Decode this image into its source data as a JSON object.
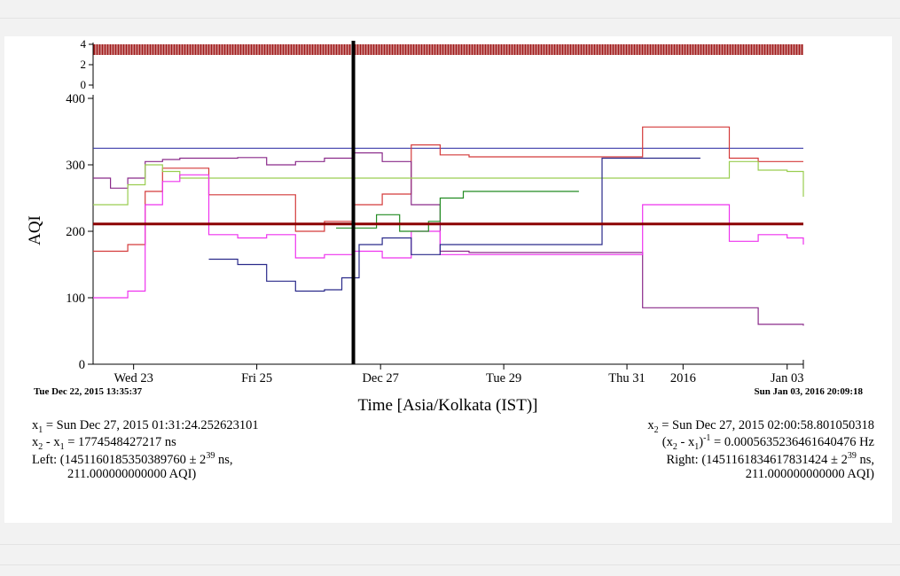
{
  "chart_data": {
    "type": "line",
    "title": "",
    "xlabel": "Time [Asia/Kolkata (IST)]",
    "ylabel": "AQI",
    "ylim": [
      0,
      400
    ],
    "y_ticks": [
      0,
      100,
      200,
      300,
      400
    ],
    "upper_axis_ticks": [
      0,
      2,
      4
    ],
    "x_tick_labels": [
      "Wed 23",
      "Fri 25",
      "Dec 27",
      "Tue 29",
      "Thu 31",
      "2016",
      "Jan 03"
    ],
    "x_range": [
      "2015-12-22 13:35:37",
      "2016-01-03 20:09:18"
    ],
    "start_label": "Tue Dec 22, 2015 13:35:37",
    "end_label": "Sun Jan 03, 2016 20:09:18",
    "grid": false,
    "cursor_x": "2015-12-27 01:31",
    "horizontal_marker": 211,
    "series": [
      {
        "color": "#3a3aa8",
        "x": [
          0,
          0.6,
          12.28
        ],
        "y": [
          325,
          325,
          325
        ]
      },
      {
        "color": "#d43a3a",
        "x": [
          0,
          0.3,
          0.6,
          0.9,
          1.2,
          1.5,
          2,
          2.5,
          3,
          3.5,
          4,
          4.5,
          5,
          5.5,
          6,
          6.5,
          7,
          7.5,
          8,
          8.5,
          9,
          9.5,
          10,
          10.5,
          11,
          11.5,
          12,
          12.28
        ],
        "y": [
          170,
          170,
          180,
          260,
          295,
          295,
          255,
          255,
          255,
          200,
          215,
          240,
          256,
          330,
          315,
          312,
          312,
          312,
          312,
          312,
          312,
          357,
          357,
          357,
          310,
          305,
          305,
          305
        ]
      },
      {
        "color": "#8a2a8a",
        "x": [
          0,
          0.3,
          0.6,
          0.9,
          1.2,
          1.5,
          2,
          2.5,
          3,
          3.5,
          4,
          4.5,
          5,
          5.5,
          6,
          6.5,
          7,
          7.5,
          8,
          8.5,
          9,
          9.5,
          10,
          10.5,
          11,
          11.5,
          12,
          12.28
        ],
        "y": [
          280,
          265,
          280,
          305,
          308,
          310,
          310,
          311,
          300,
          305,
          310,
          318,
          305,
          240,
          170,
          168,
          168,
          168,
          168,
          168,
          168,
          85,
          85,
          85,
          85,
          60,
          60,
          58
        ]
      },
      {
        "color": "#9acd50",
        "x": [
          0,
          0.3,
          0.6,
          0.9,
          1.2,
          1.5,
          2,
          2.5,
          3,
          3.5,
          4,
          4.5,
          5,
          5.5,
          6,
          6.5,
          7,
          7.5,
          8,
          8.5,
          9,
          9.5,
          10,
          10.5,
          11,
          11.5,
          12,
          12.28
        ],
        "y": [
          240,
          240,
          270,
          300,
          290,
          280,
          280,
          280,
          280,
          280,
          280,
          280,
          280,
          280,
          280,
          280,
          280,
          280,
          280,
          280,
          280,
          280,
          280,
          280,
          305,
          292,
          290,
          252
        ]
      },
      {
        "color": "#ee33ee",
        "x": [
          0,
          0.3,
          0.6,
          0.9,
          1.2,
          1.5,
          2,
          2.5,
          3,
          3.5,
          4,
          4.5,
          5,
          5.5,
          6,
          6.5,
          7,
          7.5,
          8,
          8.5,
          9,
          9.5,
          10,
          10.5,
          11,
          11.5,
          12,
          12.28
        ],
        "y": [
          100,
          100,
          110,
          240,
          275,
          285,
          195,
          190,
          195,
          160,
          165,
          170,
          160,
          200,
          165,
          165,
          165,
          165,
          165,
          165,
          165,
          240,
          240,
          240,
          185,
          195,
          190,
          180
        ]
      },
      {
        "color": "#228b22",
        "x": [
          4.2,
          4.5,
          4.9,
          5.3,
          5.8,
          6,
          6.4,
          7,
          7.5,
          8,
          8.4
        ],
        "y": [
          205,
          205,
          225,
          200,
          215,
          250,
          260,
          260,
          260,
          260,
          260
        ]
      },
      {
        "color": "#2a2a8a",
        "x": [
          2,
          2.5,
          3,
          3.5,
          4,
          4.3,
          4.6,
          5,
          5.5,
          6,
          6.5,
          7,
          7.5,
          8,
          8.4,
          8.8,
          9,
          9.5,
          10,
          10.5
        ],
        "y": [
          158,
          150,
          125,
          110,
          112,
          130,
          180,
          190,
          165,
          180,
          180,
          180,
          180,
          180,
          180,
          310,
          310,
          310,
          310,
          310
        ]
      }
    ]
  },
  "readout": {
    "x1": "x1 = Sun Dec 27, 2015 01:31:24.252623101",
    "diff": "x2 - x1 = 1774548427217 ns",
    "left_1": "Left: (1451160185350389760 ± 2^39 ns,",
    "left_2": "211.000000000000 AQI)",
    "x2": "x2 = Sun Dec 27, 2015 02:00:58.801050318",
    "freq": "(x2 - x1)^-1 = 0.0005635236461640476 Hz",
    "right_1": "Right: (1451161834617831424 ± 2^39 ns,",
    "right_2": "211.000000000000 AQI)"
  }
}
